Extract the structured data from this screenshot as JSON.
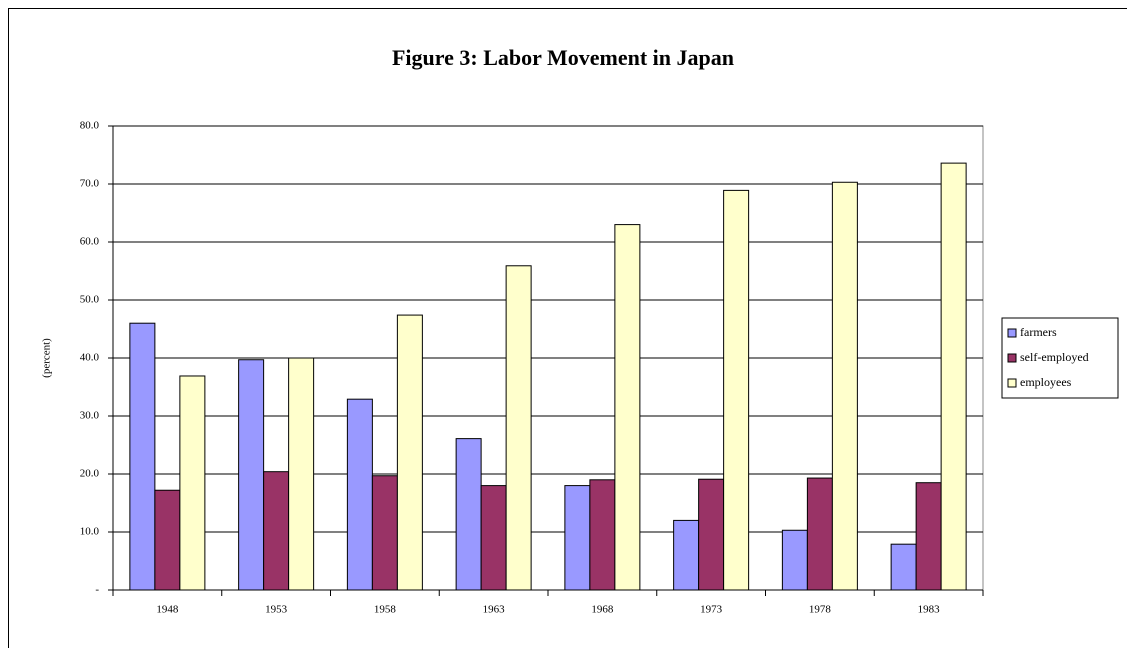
{
  "chart_data": {
    "type": "bar",
    "title": "Figure 3: Labor Movement in Japan",
    "y_label": "(percent)",
    "categories": [
      "1948",
      "1953",
      "1958",
      "1963",
      "1968",
      "1973",
      "1978",
      "1983"
    ],
    "series": [
      {
        "name": "farmers",
        "color": "#9999ff",
        "values": [
          46.0,
          39.7,
          32.9,
          26.1,
          18.0,
          12.0,
          10.3,
          7.9
        ]
      },
      {
        "name": "self-employed",
        "color": "#993366",
        "values": [
          17.2,
          20.4,
          19.7,
          18.0,
          19.0,
          19.1,
          19.3,
          18.5
        ]
      },
      {
        "name": "employees",
        "color": "#ffffcc",
        "values": [
          36.9,
          40.0,
          47.4,
          55.9,
          63.0,
          68.9,
          70.3,
          73.6
        ]
      }
    ],
    "ylim": [
      0,
      80
    ],
    "yticks": [
      {
        "value": 0,
        "label": "-"
      },
      {
        "value": 10,
        "label": "10.0"
      },
      {
        "value": 20,
        "label": "20.0"
      },
      {
        "value": 30,
        "label": "30.0"
      },
      {
        "value": 40,
        "label": "40.0"
      },
      {
        "value": 50,
        "label": "50.0"
      },
      {
        "value": 60,
        "label": "60.0"
      },
      {
        "value": 70,
        "label": "70.0"
      },
      {
        "value": 80,
        "label": "80.0"
      }
    ],
    "grid": true,
    "legend": "right"
  }
}
